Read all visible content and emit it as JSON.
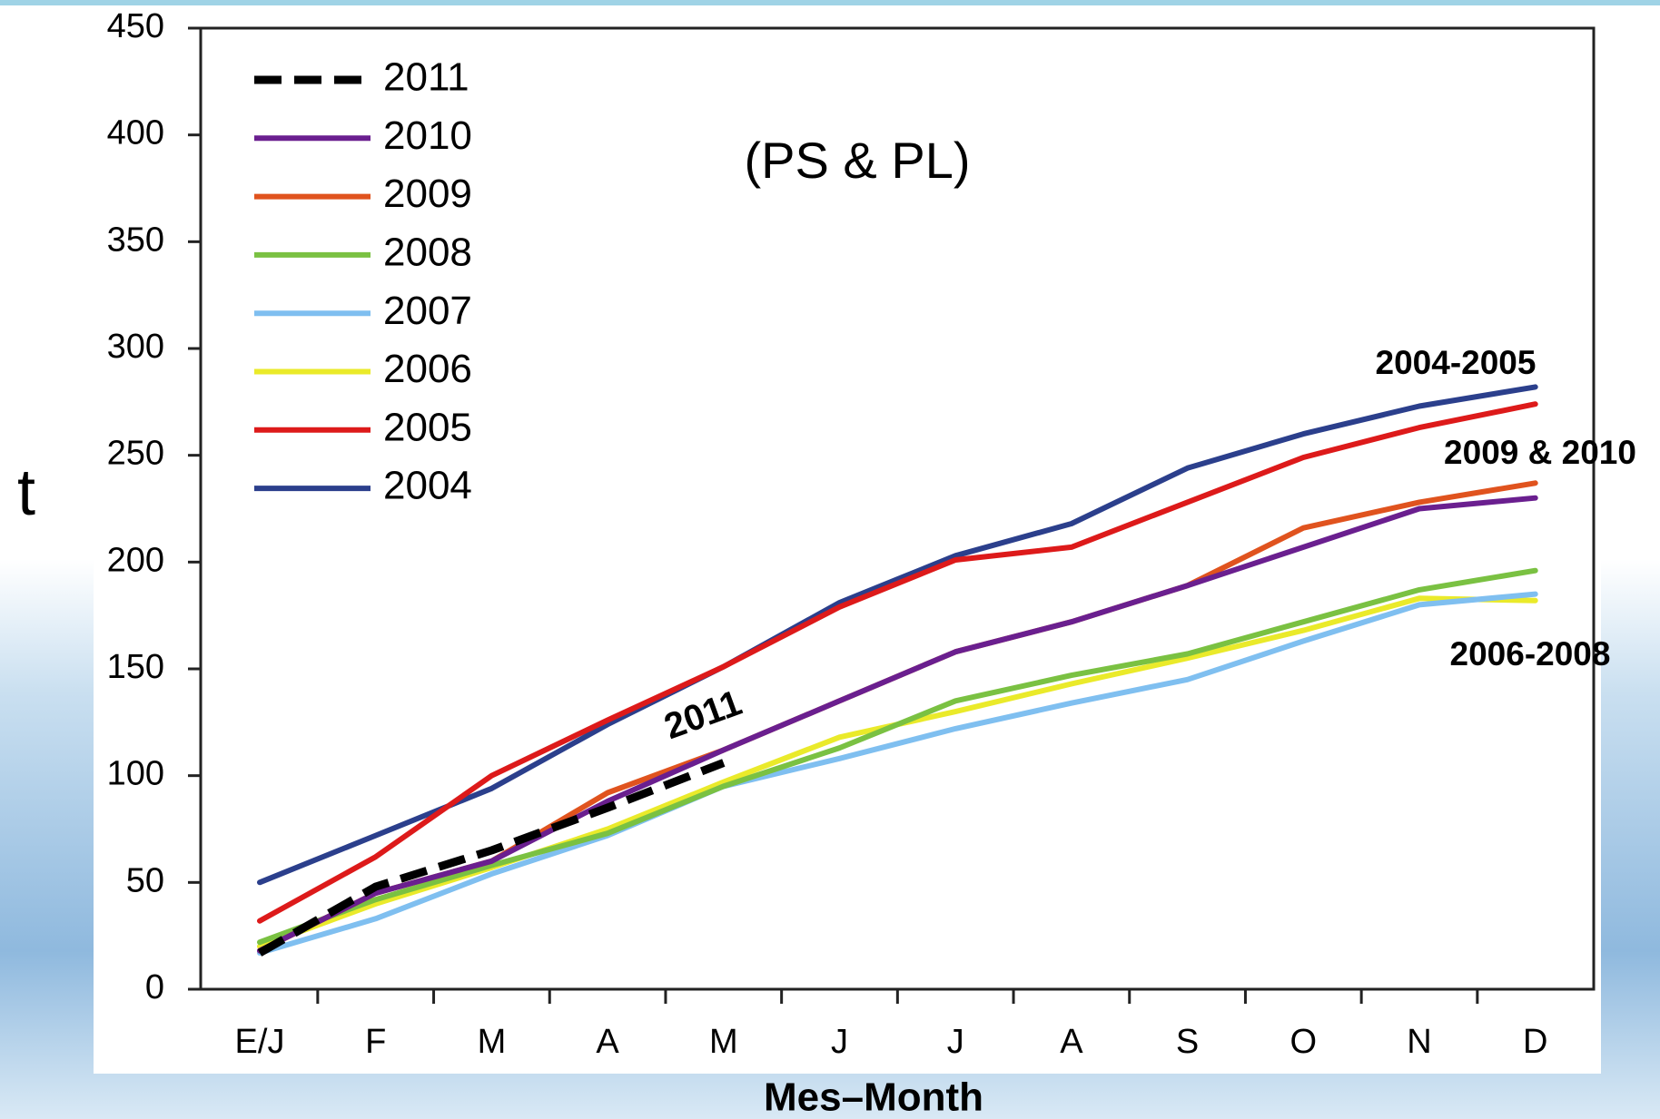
{
  "chart_data": {
    "type": "line",
    "title": "(PS & PL)",
    "ylabel": "t",
    "xlabel": "Mes–Month",
    "categories": [
      "E/J",
      "F",
      "M",
      "A",
      "M",
      "J",
      "J",
      "A",
      "S",
      "O",
      "N",
      "D"
    ],
    "ylim": [
      0,
      450
    ],
    "yticks": [
      0,
      50,
      100,
      150,
      200,
      250,
      300,
      350,
      400,
      450
    ],
    "legend": "upper left",
    "annotations": [
      "2004-2005",
      "2009 & 2010",
      "2006-2008",
      "2011"
    ],
    "series": [
      {
        "name": "2011",
        "color": "#000000",
        "dash": true,
        "values": [
          17,
          48,
          65,
          85,
          106,
          null,
          null,
          null,
          null,
          null,
          null,
          null
        ]
      },
      {
        "name": "2010",
        "color": "#6a1f8f",
        "values": [
          18,
          45,
          60,
          88,
          112,
          135,
          158,
          172,
          189,
          207,
          225,
          230
        ]
      },
      {
        "name": "2009",
        "color": "#e0531e",
        "values": [
          18,
          45,
          60,
          92,
          112,
          135,
          158,
          172,
          189,
          216,
          228,
          237
        ]
      },
      {
        "name": "2008",
        "color": "#7ac142",
        "values": [
          22,
          42,
          58,
          73,
          95,
          113,
          135,
          147,
          157,
          172,
          187,
          196
        ]
      },
      {
        "name": "2007",
        "color": "#7fbff0",
        "values": [
          17,
          33,
          54,
          72,
          95,
          108,
          122,
          134,
          145,
          163,
          180,
          185
        ]
      },
      {
        "name": "2006",
        "color": "#eaea2a",
        "values": [
          20,
          40,
          57,
          75,
          97,
          118,
          130,
          143,
          155,
          168,
          183,
          182
        ]
      },
      {
        "name": "2005",
        "color": "#dd1a1a",
        "values": [
          32,
          62,
          100,
          126,
          151,
          179,
          201,
          207,
          228,
          249,
          263,
          274
        ]
      },
      {
        "name": "2004",
        "color": "#2b3f8c",
        "values": [
          50,
          72,
          94,
          124,
          151,
          181,
          203,
          218,
          244,
          260,
          273,
          282
        ]
      }
    ]
  }
}
